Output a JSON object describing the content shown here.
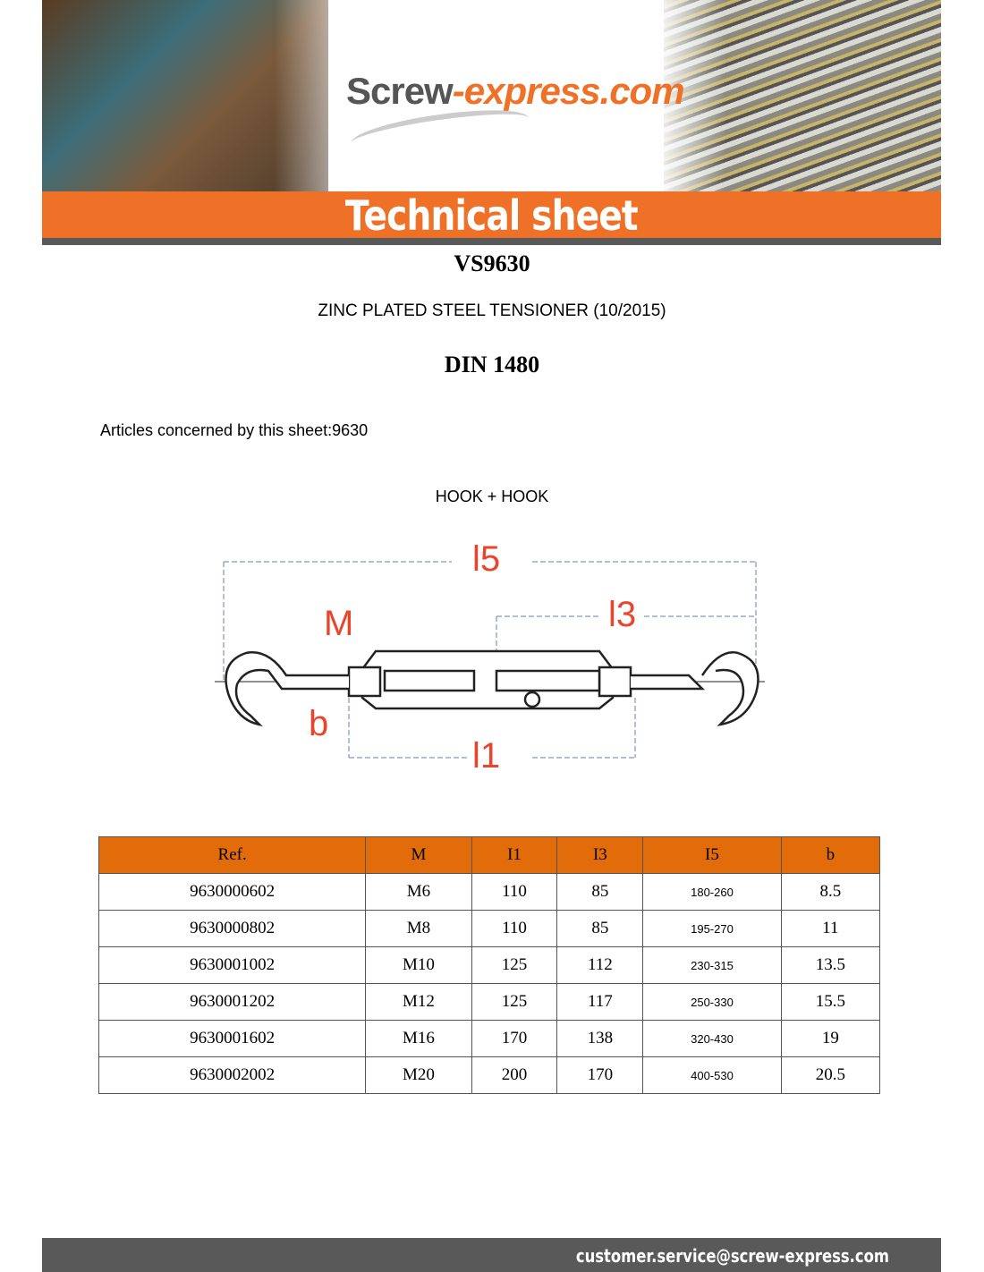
{
  "header": {
    "logo_part1": "Screw",
    "logo_part2": "-express.com",
    "title": "Technical sheet"
  },
  "doc": {
    "reference": "VS9630",
    "description": "ZINC PLATED STEEL TENSIONER (10/2015)",
    "standard": "DIN 1480",
    "articles": "Articles concerned by this sheet:9630",
    "variant": "HOOK + HOOK"
  },
  "diagram": {
    "labels": {
      "l5": "l5",
      "l3": "l3",
      "l1": "l1",
      "M": "M",
      "b": "b"
    },
    "label_color": "#e8452c"
  },
  "table": {
    "headers": [
      "Ref.",
      "M",
      "I1",
      "I3",
      "I5",
      "b"
    ],
    "rows": [
      [
        "9630000602",
        "M6",
        "110",
        "85",
        "180-260",
        "8.5"
      ],
      [
        "9630000802",
        "M8",
        "110",
        "85",
        "195-270",
        "11"
      ],
      [
        "9630001002",
        "M10",
        "125",
        "112",
        "230-315",
        "13.5"
      ],
      [
        "9630001202",
        "M12",
        "125",
        "117",
        "250-330",
        "15.5"
      ],
      [
        "9630001602",
        "M16",
        "170",
        "138",
        "320-430",
        "19"
      ],
      [
        "9630002002",
        "M20",
        "200",
        "170",
        "400-530",
        "20.5"
      ]
    ],
    "header_color": "#e36c0a"
  },
  "footer": {
    "email": "customer.service@screw-express.com"
  },
  "colors": {
    "accent": "#ee7127",
    "dark_bar": "#595959"
  }
}
